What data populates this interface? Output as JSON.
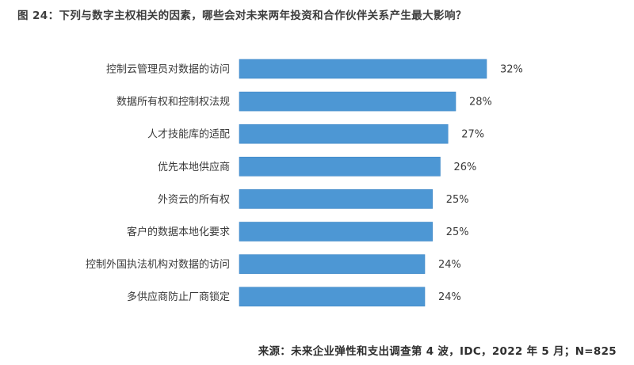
{
  "title": "图 24：下列与数字主权相关的因素，哪些会对未来两年投资和合作伙伴关系产生最大影响？",
  "source": "来源：未来企业弹性和支出调查第 4 波，IDC，2022 年 5 月；N=825",
  "colors": {
    "bar": "#4d97d4",
    "bar_edge": "#3f87c6"
  },
  "chart_data": {
    "type": "bar",
    "orientation": "horizontal",
    "categories": [
      "控制云管理员对数据的访问",
      "数据所有权和控制权法规",
      "人才技能库的适配",
      "优先本地供应商",
      "外资云的所有权",
      "客户的数据本地化要求",
      "控制外国执法机构对数据的访问",
      "多供应商防止厂商锁定"
    ],
    "values": [
      32,
      28,
      27,
      26,
      25,
      25,
      24,
      24
    ],
    "value_labels": [
      "32%",
      "28%",
      "27%",
      "26%",
      "25%",
      "25%",
      "24%",
      "24%"
    ],
    "unit": "%",
    "grid": false,
    "legend": "none"
  }
}
